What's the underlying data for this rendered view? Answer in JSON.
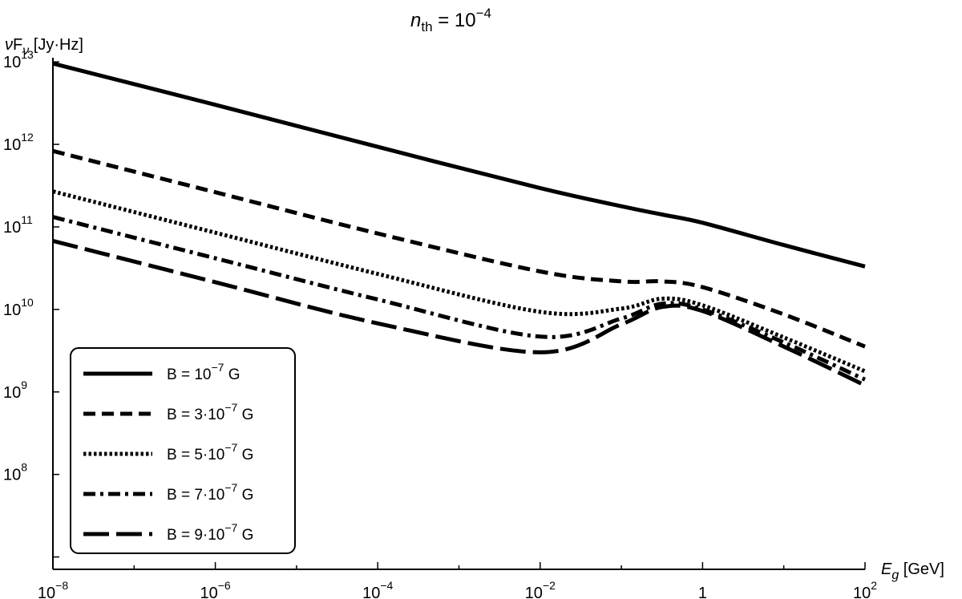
{
  "chart_data": {
    "type": "line",
    "title": {
      "main": "n",
      "sub": "th",
      "rest": " = 10",
      "exp": "−4"
    },
    "ylabel": {
      "nu": "ν",
      "F": "F",
      "sub": "ν",
      "unit": " [Jy·Hz]"
    },
    "xlabel": {
      "E": "E",
      "sub": "g",
      "unit": " [GeV]"
    },
    "x_scale": "log",
    "y_scale": "log",
    "xlim_log10": [
      -8,
      2
    ],
    "ylim_log10": [
      6.85,
      13.05
    ],
    "x_ticks": [
      {
        "base": "10",
        "exp": "−8",
        "log": -8
      },
      {
        "base": "10",
        "exp": "−6",
        "log": -6
      },
      {
        "base": "10",
        "exp": "−4",
        "log": -4
      },
      {
        "base": "10",
        "exp": "−2",
        "log": -2
      },
      {
        "base": "1",
        "exp": "",
        "log": 0
      },
      {
        "base": "10",
        "exp": "2",
        "log": 2
      }
    ],
    "y_ticks": [
      {
        "base": "10",
        "exp": "8",
        "log": 8
      },
      {
        "base": "10",
        "exp": "9",
        "log": 9
      },
      {
        "base": "10",
        "exp": "10",
        "log": 10
      },
      {
        "base": "10",
        "exp": "11",
        "log": 11
      },
      {
        "base": "10",
        "exp": "12",
        "log": 12
      },
      {
        "base": "10",
        "exp": "13",
        "log": 13
      }
    ],
    "grid": false,
    "legend_position": "bottom-left",
    "x_log10": [
      -8,
      -6,
      -4,
      -2,
      -1,
      -0.5,
      0,
      1,
      2
    ],
    "series": [
      {
        "name": "B = 10^-7 G",
        "label": {
          "pre": "B = 10",
          "exp": "−7",
          "post": " G"
        },
        "dash": "solid",
        "y_log10": [
          12.98,
          12.48,
          11.97,
          11.47,
          11.25,
          11.15,
          11.05,
          10.78,
          10.52
        ]
      },
      {
        "name": "B = 3·10^-7 G",
        "label": {
          "pre": "B = 3·10",
          "exp": "−7",
          "post": " G"
        },
        "dash": "dash",
        "y_log10": [
          11.92,
          11.42,
          10.92,
          10.46,
          10.34,
          10.34,
          10.27,
          9.94,
          9.55
        ]
      },
      {
        "name": "B = 5·10^-7 G",
        "label": {
          "pre": "B = 5·10",
          "exp": "−7",
          "post": " G"
        },
        "dash": "dotted",
        "y_log10": [
          11.43,
          10.93,
          10.43,
          9.97,
          10.01,
          10.13,
          10.05,
          9.66,
          9.25
        ]
      },
      {
        "name": "B = 7·10^-7 G",
        "label": {
          "pre": "B = 7·10",
          "exp": "−7",
          "post": " G"
        },
        "dash": "dashdot",
        "y_log10": [
          11.12,
          10.62,
          10.12,
          9.67,
          9.89,
          10.07,
          10.0,
          9.6,
          9.15
        ]
      },
      {
        "name": "B = 9·10^-7 G",
        "label": {
          "pre": "B = 9·10",
          "exp": "−7",
          "post": " G"
        },
        "dash": "longdash",
        "y_log10": [
          10.83,
          10.33,
          9.83,
          9.48,
          9.82,
          10.03,
          9.98,
          9.55,
          9.08
        ]
      }
    ]
  }
}
